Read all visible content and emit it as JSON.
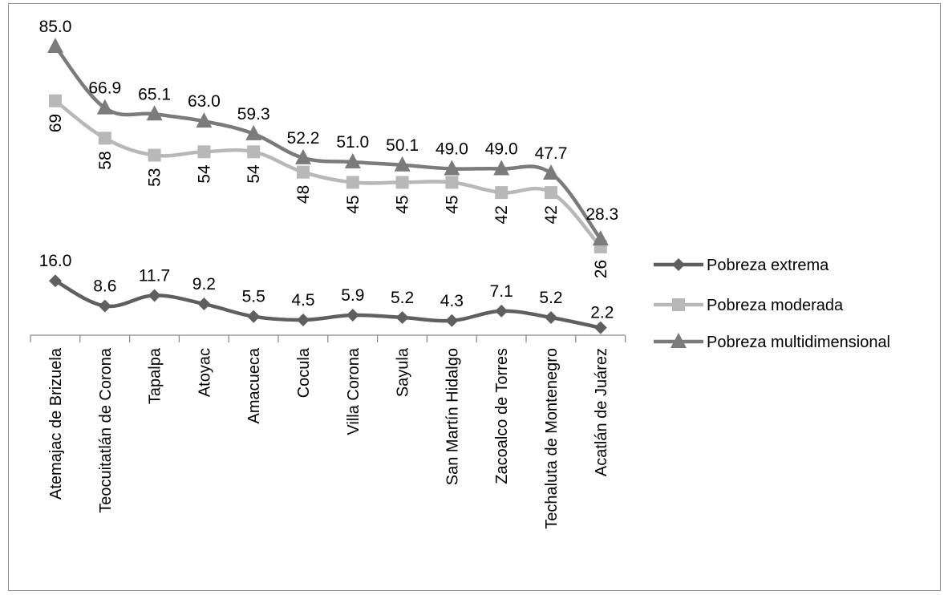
{
  "chart_data": {
    "type": "line",
    "categories": [
      "Atemajac de Brizuela",
      "Teocuitatlán de Corona",
      "Tapalpa",
      "Atoyac",
      "Amacueca",
      "Cocula",
      "Villa Corona",
      "Sayula",
      "San Martín Hidalgo",
      "Zacoalco de Torres",
      "Techaluta de Montenegro",
      "Acatlán de Juárez"
    ],
    "series": [
      {
        "name": "Pobreza extrema",
        "values": [
          16.0,
          8.6,
          11.7,
          9.2,
          5.5,
          4.5,
          5.9,
          5.2,
          4.3,
          7.1,
          5.2,
          2.2
        ],
        "labels": [
          "16.0",
          "8.6",
          "11.7",
          "9.2",
          "5.5",
          "4.5",
          "5.9",
          "5.2",
          "4.3",
          "7.1",
          "5.2",
          "2.2"
        ],
        "color": "#5f5f5f",
        "marker": "diamond"
      },
      {
        "name": "Pobreza moderada",
        "values": [
          69,
          58,
          53,
          54,
          54,
          48,
          45,
          45,
          45,
          42,
          42,
          26
        ],
        "labels": [
          "69",
          "58",
          "53",
          "54",
          "54",
          "48",
          "45",
          "45",
          "45",
          "42",
          "42",
          "26"
        ],
        "color": "#b8b8b8",
        "marker": "square"
      },
      {
        "name": "Pobreza multidimensional",
        "values": [
          85.0,
          66.9,
          65.1,
          63.0,
          59.3,
          52.2,
          51.0,
          50.1,
          49.0,
          49.0,
          47.7,
          28.3
        ],
        "labels": [
          "85.0",
          "66.9",
          "65.1",
          "63.0",
          "59.3",
          "52.2",
          "51.0",
          "50.1",
          "49.0",
          "49.0",
          "47.7",
          "28.3"
        ],
        "color": "#7b7b7b",
        "marker": "triangle"
      }
    ],
    "title": "",
    "xlabel": "",
    "ylabel": "",
    "ylim": [
      0,
      90
    ],
    "grid": false,
    "legend_position": "right",
    "smooth": true
  }
}
